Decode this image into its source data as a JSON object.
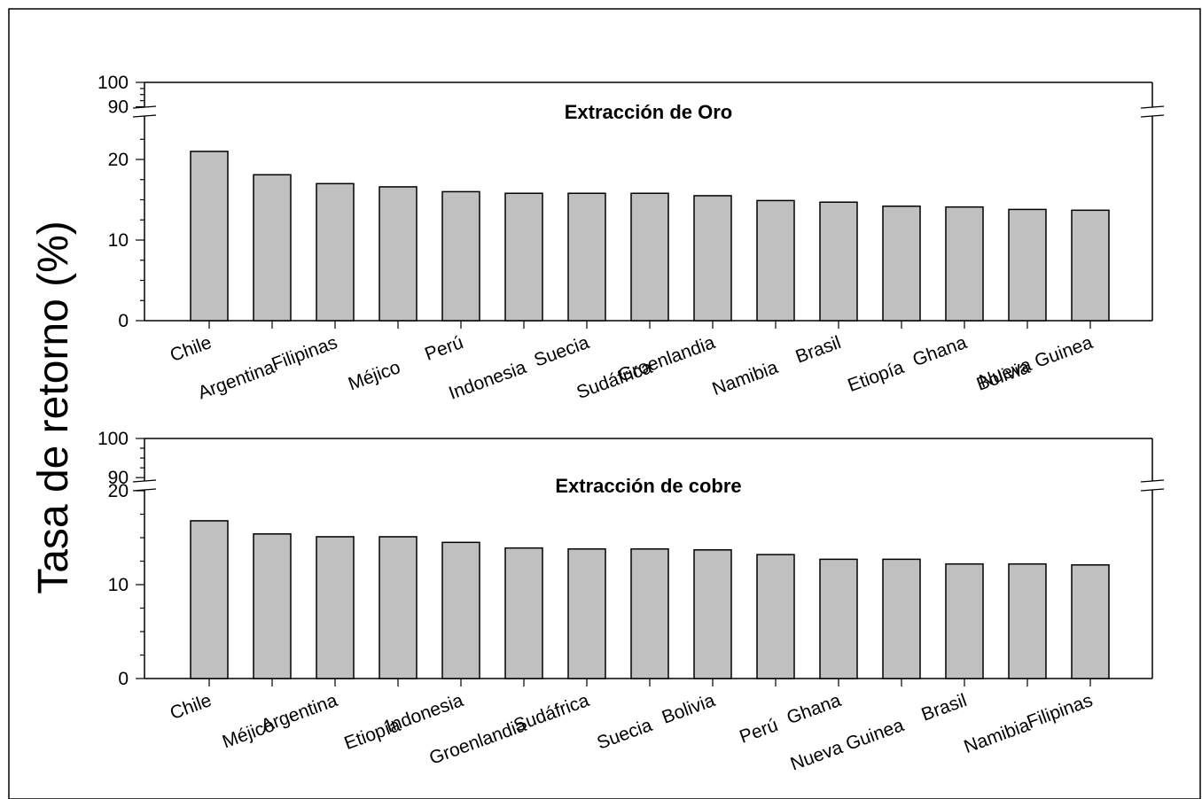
{
  "chart_data": {
    "type": "bar",
    "ylabel": "Tasa de retorno (%)",
    "panels": [
      {
        "title": "Extracción de Oro",
        "categories": [
          "Chile",
          "Argentina",
          "Filipinas",
          "Méjico",
          "Perú",
          "Indonesia",
          "Suecia",
          "Sudáfrica",
          "Groenlandia",
          "Namibia",
          "Brasil",
          "Etiopía",
          "Ghana",
          "Bolivia",
          "Nueva Guinea"
        ],
        "values": [
          21.0,
          18.1,
          17.0,
          16.6,
          16.0,
          15.8,
          15.8,
          15.8,
          15.5,
          14.9,
          14.7,
          14.2,
          14.1,
          13.8,
          13.7
        ],
        "ylim": [
          0,
          100
        ],
        "axis_break": [
          23,
          88
        ],
        "yticks_major": [
          0,
          10,
          20,
          90,
          100
        ]
      },
      {
        "title": "Extracción de cobre",
        "categories": [
          "Chile",
          "Méjico",
          "Argentina",
          "Etiopía",
          "Indonesia",
          "Groenlandia",
          "Sudáfrica",
          "Suecia",
          "Bolivia",
          "Perú",
          "Ghana",
          "Nueva Guinea",
          "Brasil",
          "Namibia",
          "Filipinas"
        ],
        "values": [
          16.8,
          15.4,
          15.1,
          15.1,
          14.5,
          13.9,
          13.8,
          13.8,
          13.7,
          13.2,
          12.7,
          12.7,
          12.2,
          12.2,
          12.1
        ],
        "ylim": [
          0,
          100
        ],
        "axis_break": [
          20,
          88
        ],
        "yticks_major": [
          0,
          10,
          20,
          90,
          100
        ]
      }
    ],
    "bar_color": "#c0c0c0",
    "grid": false,
    "legend": "none"
  }
}
